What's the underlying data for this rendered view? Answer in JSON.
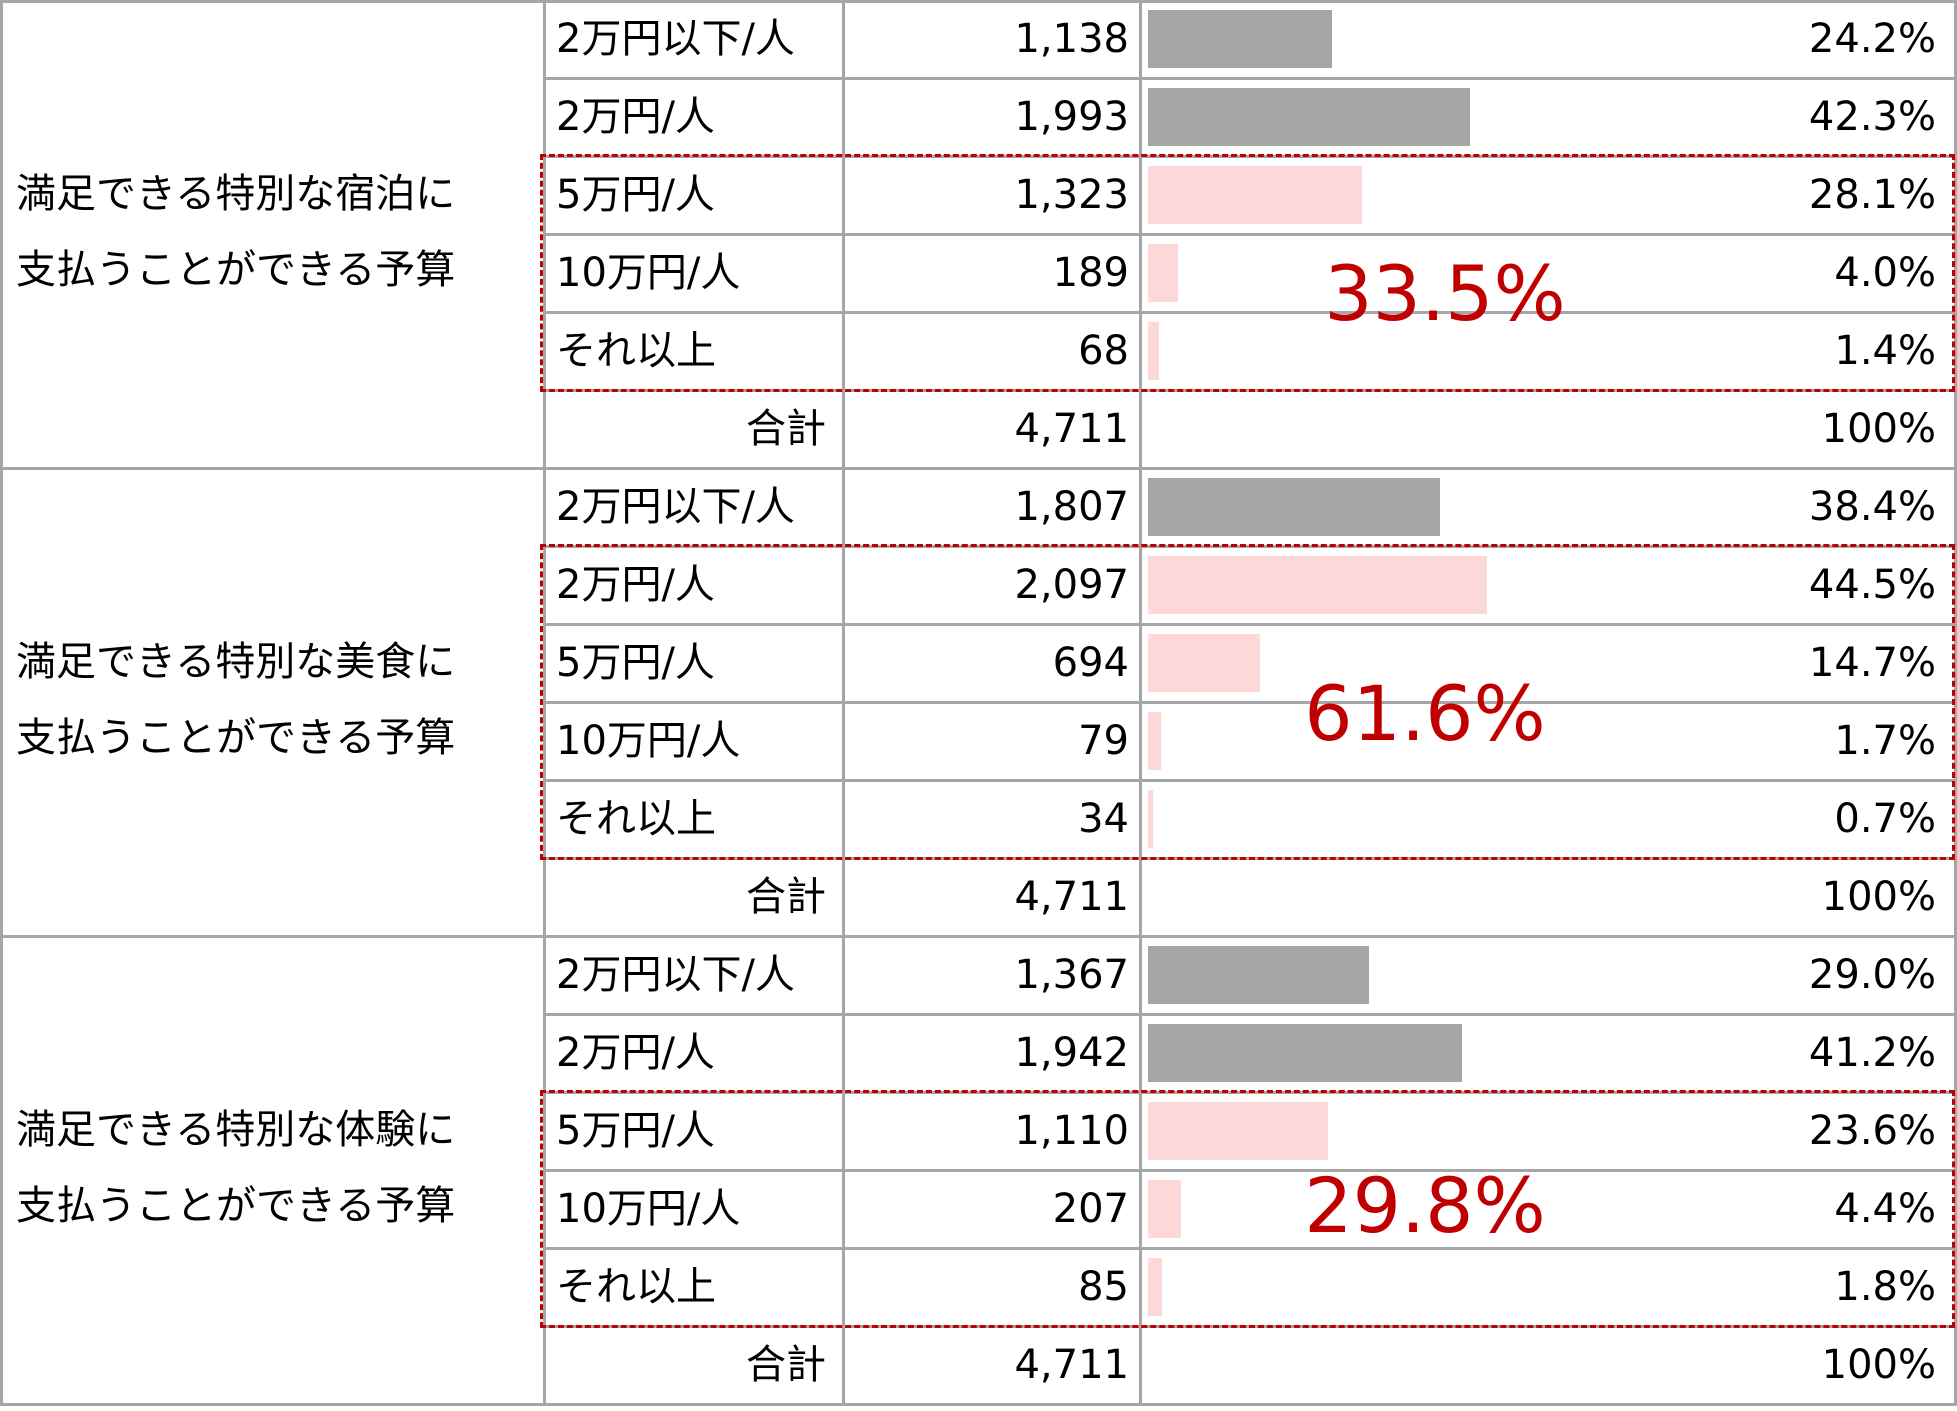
{
  "chart_data": {
    "type": "table",
    "sections": [
      {
        "question_lines": [
          "満足できる特別な宿泊に",
          "支払うことができる予算"
        ],
        "rows": [
          {
            "label": "2万円以下/人",
            "count_text": "1,138",
            "percent_text": "24.2%",
            "percent": 24.2
          },
          {
            "label": "2万円/人",
            "count_text": "1,993",
            "percent_text": "42.3%",
            "percent": 42.3
          },
          {
            "label": "5万円/人",
            "count_text": "1,323",
            "percent_text": "28.1%",
            "percent": 28.1
          },
          {
            "label": "10万円/人",
            "count_text": "189",
            "percent_text": "4.0%",
            "percent": 4.0
          },
          {
            "label": "それ以上",
            "count_text": "68",
            "percent_text": "1.4%",
            "percent": 1.4
          }
        ],
        "total": {
          "label": "合計",
          "count_text": "4,711",
          "percent_text": "100%"
        },
        "highlight_from_row": 2,
        "highlight_total": "33.5%"
      },
      {
        "question_lines": [
          "満足できる特別な美食に",
          "支払うことができる予算"
        ],
        "rows": [
          {
            "label": "2万円以下/人",
            "count_text": "1,807",
            "percent_text": "38.4%",
            "percent": 38.4
          },
          {
            "label": "2万円/人",
            "count_text": "2,097",
            "percent_text": "44.5%",
            "percent": 44.5
          },
          {
            "label": "5万円/人",
            "count_text": "694",
            "percent_text": "14.7%",
            "percent": 14.7
          },
          {
            "label": "10万円/人",
            "count_text": "79",
            "percent_text": "1.7%",
            "percent": 1.7
          },
          {
            "label": "それ以上",
            "count_text": "34",
            "percent_text": "0.7%",
            "percent": 0.7
          }
        ],
        "total": {
          "label": "合計",
          "count_text": "4,711",
          "percent_text": "100%"
        },
        "highlight_from_row": 1,
        "highlight_total": "61.6%"
      },
      {
        "question_lines": [
          "満足できる特別な体験に",
          "支払うことができる予算"
        ],
        "rows": [
          {
            "label": "2万円以下/人",
            "count_text": "1,367",
            "percent_text": "29.0%",
            "percent": 29.0
          },
          {
            "label": "2万円/人",
            "count_text": "1,942",
            "percent_text": "41.2%",
            "percent": 41.2
          },
          {
            "label": "5万円/人",
            "count_text": "1,110",
            "percent_text": "23.6%",
            "percent": 23.6
          },
          {
            "label": "10万円/人",
            "count_text": "207",
            "percent_text": "4.4%",
            "percent": 4.4
          },
          {
            "label": "それ以上",
            "count_text": "85",
            "percent_text": "1.8%",
            "percent": 1.8
          }
        ],
        "total": {
          "label": "合計",
          "count_text": "4,711",
          "percent_text": "100%"
        },
        "highlight_from_row": 2,
        "highlight_total": "29.8%"
      }
    ]
  },
  "colors": {
    "grid_line": "#a6a6a6",
    "bar_normal": "#a6a6a6",
    "bar_highlight": "#fcd9d8",
    "highlight_border": "#c00000",
    "highlight_text": "#c00000"
  }
}
